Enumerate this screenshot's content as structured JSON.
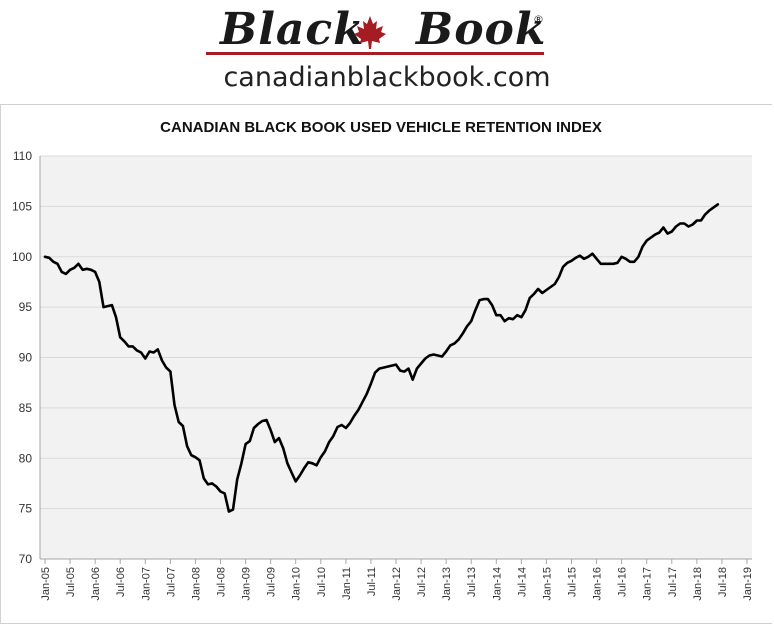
{
  "logo": {
    "brand_word1": "Black",
    "brand_word2": "Book",
    "registered": "®",
    "website": "canadianblackbook.com",
    "leaf_icon": "maple-leaf-icon",
    "accent_color": "#a51d22"
  },
  "chart_data": {
    "type": "line",
    "title": "CANADIAN BLACK BOOK USED VEHICLE RETENTION INDEX",
    "xlabel": "",
    "ylabel": "",
    "ylim": [
      70,
      110
    ],
    "yticks": [
      "70",
      "75",
      "80",
      "85",
      "90",
      "95",
      "100",
      "105",
      "110"
    ],
    "x_start": "2005-01",
    "x_end": "2019-01",
    "xtick_labels": [
      "Jan-05",
      "Jul-05",
      "Jan-06",
      "Jul-06",
      "Jan-07",
      "Jul-07",
      "Jan-08",
      "Jul-08",
      "Jan-09",
      "Jul-09",
      "Jan-10",
      "Jul-10",
      "Jan-11",
      "Jul-11",
      "Jan-12",
      "Jul-12",
      "Jan-13",
      "Jul-13",
      "Jan-14",
      "Jul-14",
      "Jan-15",
      "Jul-15",
      "Jan-16",
      "Jul-16",
      "Jan-17",
      "Jul-17",
      "Jan-18",
      "Jul-18",
      "Jan-19"
    ],
    "grid": true,
    "legend": "none",
    "line_color": "#000000",
    "plot_background": "#f2f2f2",
    "series": [
      {
        "values": [
          100.0,
          99.9,
          99.5,
          99.3,
          98.5,
          98.3,
          98.7,
          98.9,
          99.3,
          98.7,
          98.8,
          98.7,
          98.5,
          97.5,
          95.0,
          95.1,
          95.2,
          94.0,
          92.0,
          91.6,
          91.1,
          91.1,
          90.7,
          90.5,
          89.9,
          90.6,
          90.5,
          90.8,
          89.7,
          89.0,
          88.6,
          85.3,
          83.6,
          83.2,
          81.2,
          80.3,
          80.1,
          79.8,
          78.0,
          77.4,
          77.5,
          77.2,
          76.7,
          76.5,
          74.7,
          74.9,
          77.9,
          79.5,
          81.4,
          81.7,
          83.0,
          83.4,
          83.7,
          83.8,
          82.8,
          81.6,
          82.0,
          81.0,
          79.5,
          78.6,
          77.7,
          78.3,
          79.0,
          79.6,
          79.5,
          79.3,
          80.1,
          80.7,
          81.6,
          82.2,
          83.1,
          83.3,
          83.0,
          83.5,
          84.2,
          84.8,
          85.6,
          86.4,
          87.4,
          88.5,
          88.9,
          89.0,
          89.1,
          89.2,
          89.3,
          88.7,
          88.6,
          88.9,
          87.8,
          88.9,
          89.4,
          89.9,
          90.2,
          90.3,
          90.2,
          90.1,
          90.6,
          91.2,
          91.4,
          91.8,
          92.4,
          93.1,
          93.6,
          94.7,
          95.7,
          95.8,
          95.8,
          95.2,
          94.2,
          94.2,
          93.6,
          93.9,
          93.8,
          94.2,
          94.0,
          94.7,
          95.9,
          96.3,
          96.8,
          96.4,
          96.7,
          97.0,
          97.3,
          98.0,
          99.0,
          99.4,
          99.6,
          99.9,
          100.1,
          99.8,
          100.0,
          100.3,
          99.8,
          99.3,
          99.3,
          99.3,
          99.3,
          99.4,
          100.0,
          99.8,
          99.5,
          99.5,
          100.0,
          101.0,
          101.6,
          101.9,
          102.2,
          102.4,
          102.9,
          102.3,
          102.5,
          103.0,
          103.3,
          103.3,
          103.0,
          103.2,
          103.6,
          103.6,
          104.2,
          104.6,
          104.9,
          105.2
        ]
      }
    ]
  }
}
